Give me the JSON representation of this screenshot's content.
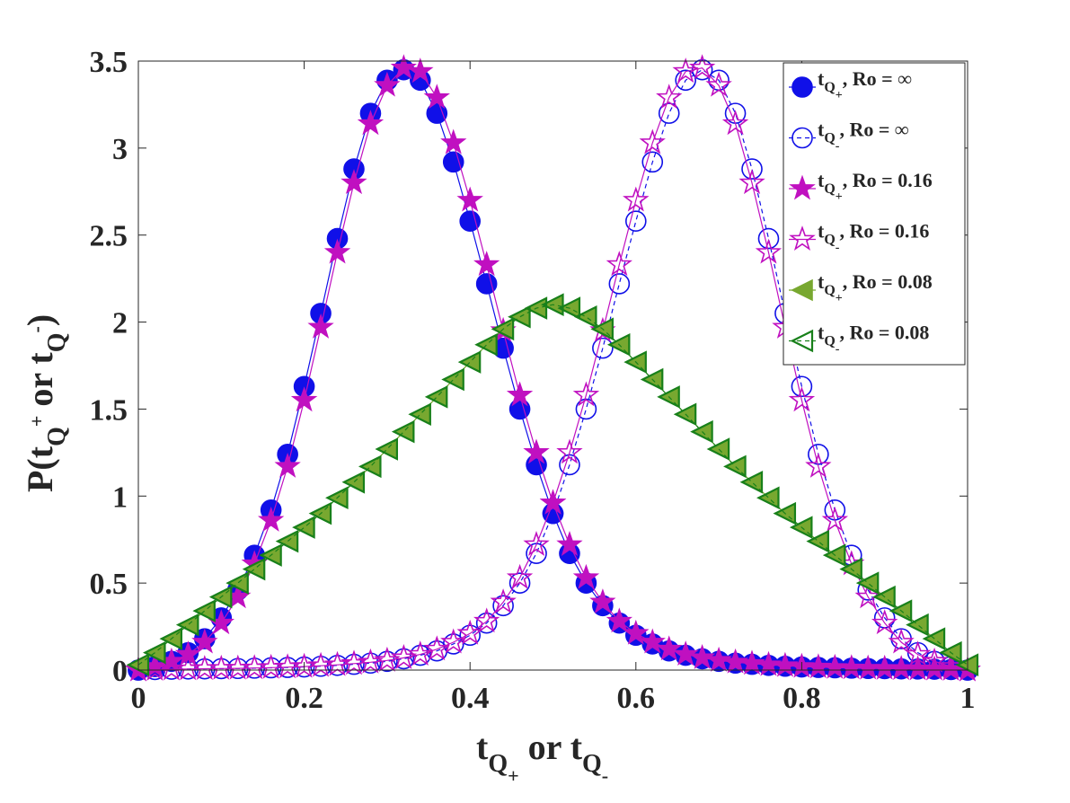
{
  "chart_data": {
    "type": "line",
    "xlabel": {
      "main": "t",
      "sub1": "Q",
      "sub2": "+",
      "mid": " or t",
      "sub3": "Q",
      "sub4": "-"
    },
    "ylabel": {
      "main": "P(t",
      "sub1": "Q",
      "sup1": "+",
      "mid": " or t",
      "sub2": "Q",
      "sup2": "-",
      "end": ")"
    },
    "xlim": [
      0,
      1
    ],
    "ylim": [
      0,
      3.5
    ],
    "xticks": [
      0,
      0.2,
      0.4,
      0.6,
      0.8,
      1
    ],
    "xtick_labels": [
      "0",
      "0.2",
      "0.4",
      "0.6",
      "0.8",
      "1"
    ],
    "yticks": [
      0,
      0.5,
      1,
      1.5,
      2,
      2.5,
      3,
      3.5
    ],
    "ytick_labels": [
      "0",
      "0.5",
      "1",
      "1.5",
      "2",
      "2.5",
      "3",
      "3.5"
    ],
    "legend_position": "top-right",
    "x": [
      0.0,
      0.02,
      0.04,
      0.06,
      0.08,
      0.1,
      0.12,
      0.14,
      0.16,
      0.18,
      0.2,
      0.22,
      0.24,
      0.26,
      0.28,
      0.3,
      0.32,
      0.34,
      0.36,
      0.38,
      0.4,
      0.42,
      0.44,
      0.46,
      0.48,
      0.5,
      0.52,
      0.54,
      0.56,
      0.58,
      0.6,
      0.62,
      0.64,
      0.66,
      0.68,
      0.7,
      0.72,
      0.74,
      0.76,
      0.78,
      0.8,
      0.82,
      0.84,
      0.86,
      0.88,
      0.9,
      0.92,
      0.94,
      0.96,
      0.98,
      1.0
    ],
    "series": [
      {
        "name": "t_{Q+}, Ro = ∞",
        "legend_main": "t",
        "legend_sub": "Q",
        "legend_subsub": "+",
        "legend_rest": ", Ro = ∞",
        "marker": "circle",
        "filled": true,
        "color": "#1010e8",
        "dash": "none",
        "values": [
          0.0,
          0.02,
          0.05,
          0.1,
          0.18,
          0.3,
          0.46,
          0.66,
          0.92,
          1.24,
          1.63,
          2.05,
          2.48,
          2.88,
          3.2,
          3.39,
          3.45,
          3.39,
          3.2,
          2.92,
          2.58,
          2.22,
          1.85,
          1.5,
          1.18,
          0.9,
          0.67,
          0.5,
          0.37,
          0.27,
          0.2,
          0.15,
          0.11,
          0.085,
          0.065,
          0.05,
          0.04,
          0.033,
          0.027,
          0.022,
          0.018,
          0.015,
          0.013,
          0.011,
          0.009,
          0.008,
          0.007,
          0.006,
          0.005,
          0.003,
          0.0
        ]
      },
      {
        "name": "t_{Q-}, Ro = ∞",
        "legend_main": "t",
        "legend_sub": "Q",
        "legend_subsub": "-",
        "legend_rest": ", Ro = ∞",
        "marker": "circle",
        "filled": false,
        "color": "#1010e8",
        "dash": "5,4",
        "values": [
          0.0,
          0.003,
          0.005,
          0.006,
          0.007,
          0.008,
          0.009,
          0.011,
          0.013,
          0.015,
          0.018,
          0.022,
          0.027,
          0.033,
          0.04,
          0.05,
          0.065,
          0.085,
          0.11,
          0.15,
          0.2,
          0.27,
          0.37,
          0.5,
          0.67,
          0.9,
          1.18,
          1.5,
          1.85,
          2.22,
          2.58,
          2.92,
          3.2,
          3.39,
          3.45,
          3.39,
          3.2,
          2.88,
          2.48,
          2.05,
          1.63,
          1.24,
          0.92,
          0.66,
          0.46,
          0.3,
          0.18,
          0.1,
          0.05,
          0.02,
          0.0
        ]
      },
      {
        "name": "t_{Q+}, Ro = 0.16",
        "legend_main": "t",
        "legend_sub": "Q",
        "legend_subsub": "+",
        "legend_rest": ", Ro = 0.16",
        "marker": "star",
        "filled": true,
        "color": "#c010c0",
        "dash": "none",
        "values": [
          0.0,
          0.02,
          0.05,
          0.09,
          0.16,
          0.27,
          0.42,
          0.61,
          0.86,
          1.17,
          1.55,
          1.97,
          2.4,
          2.8,
          3.14,
          3.36,
          3.46,
          3.44,
          3.29,
          3.03,
          2.7,
          2.33,
          1.95,
          1.58,
          1.25,
          0.96,
          0.72,
          0.53,
          0.39,
          0.28,
          0.21,
          0.16,
          0.12,
          0.09,
          0.07,
          0.055,
          0.045,
          0.037,
          0.03,
          0.025,
          0.02,
          0.017,
          0.014,
          0.012,
          0.01,
          0.009,
          0.008,
          0.006,
          0.005,
          0.003,
          0.0
        ]
      },
      {
        "name": "t_{Q-}, Ro = 0.16",
        "legend_main": "t",
        "legend_sub": "Q",
        "legend_subsub": "-",
        "legend_rest": ", Ro = 0.16",
        "marker": "star",
        "filled": false,
        "color": "#c010c0",
        "dash": "none",
        "values": [
          0.0,
          0.003,
          0.005,
          0.006,
          0.008,
          0.009,
          0.01,
          0.012,
          0.014,
          0.017,
          0.02,
          0.025,
          0.03,
          0.037,
          0.045,
          0.055,
          0.07,
          0.09,
          0.12,
          0.16,
          0.21,
          0.28,
          0.39,
          0.53,
          0.72,
          0.96,
          1.25,
          1.58,
          1.95,
          2.33,
          2.7,
          3.03,
          3.29,
          3.44,
          3.46,
          3.36,
          3.14,
          2.8,
          2.4,
          1.97,
          1.55,
          1.17,
          0.86,
          0.61,
          0.42,
          0.27,
          0.16,
          0.09,
          0.05,
          0.02,
          0.0
        ]
      },
      {
        "name": "t_{Q+}, Ro = 0.08",
        "legend_main": "t",
        "legend_sub": "Q",
        "legend_subsub": "+",
        "legend_rest": ", Ro = 0.08",
        "marker": "triangle-left",
        "filled": true,
        "color": "#78a830",
        "dash": "none",
        "values": [
          0.03,
          0.1,
          0.18,
          0.26,
          0.34,
          0.42,
          0.5,
          0.58,
          0.66,
          0.74,
          0.82,
          0.9,
          0.99,
          1.08,
          1.17,
          1.27,
          1.37,
          1.47,
          1.57,
          1.67,
          1.77,
          1.87,
          1.96,
          2.03,
          2.08,
          2.1,
          2.08,
          2.03,
          1.96,
          1.87,
          1.77,
          1.67,
          1.57,
          1.47,
          1.37,
          1.27,
          1.17,
          1.08,
          0.99,
          0.9,
          0.82,
          0.74,
          0.66,
          0.58,
          0.5,
          0.42,
          0.34,
          0.26,
          0.18,
          0.1,
          0.03
        ]
      },
      {
        "name": "t_{Q-}, Ro = 0.08",
        "legend_main": "t",
        "legend_sub": "Q",
        "legend_subsub": "-",
        "legend_rest": ", Ro = 0.08",
        "marker": "triangle-left",
        "filled": false,
        "color": "#18801a",
        "dash": "5,4",
        "values": [
          0.03,
          0.1,
          0.18,
          0.26,
          0.34,
          0.42,
          0.5,
          0.58,
          0.66,
          0.74,
          0.82,
          0.9,
          0.99,
          1.08,
          1.17,
          1.27,
          1.37,
          1.47,
          1.57,
          1.67,
          1.77,
          1.87,
          1.96,
          2.03,
          2.08,
          2.1,
          2.08,
          2.03,
          1.96,
          1.87,
          1.77,
          1.67,
          1.57,
          1.47,
          1.37,
          1.27,
          1.17,
          1.08,
          0.99,
          0.9,
          0.82,
          0.74,
          0.66,
          0.58,
          0.5,
          0.42,
          0.34,
          0.26,
          0.18,
          0.1,
          0.03
        ]
      }
    ]
  }
}
